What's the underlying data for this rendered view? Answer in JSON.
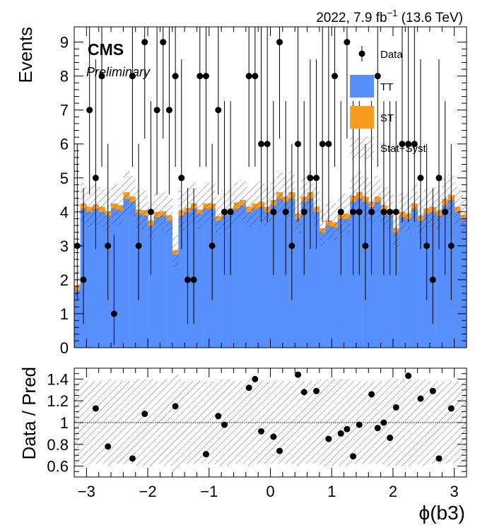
{
  "header": {
    "lumi_label": "2022, 7.9 fb",
    "lumi_sup": "−1",
    "energy_label": " (13.6 TeV)"
  },
  "experiment": {
    "name": "CMS",
    "status": "Preliminary"
  },
  "colors": {
    "TT": "#5790fc",
    "ST": "#f89c20",
    "data": "#000000"
  },
  "chart_data": {
    "type": "bar",
    "stacked": true,
    "xlabel": "ϕ(b3)",
    "ylabel": "Events",
    "xlim": [
      -3.2,
      3.2
    ],
    "ylim": [
      0,
      9.45
    ],
    "x_ticks": [
      "−3",
      "−2",
      "−1",
      "0",
      "1",
      "2",
      "3"
    ],
    "y_ticks": [
      "0",
      "1",
      "2",
      "3",
      "4",
      "5",
      "6",
      "7",
      "8",
      "9"
    ],
    "legend": {
      "position": "top-right",
      "entries": [
        {
          "label": "Data",
          "kind": "marker"
        },
        {
          "label": "TT",
          "kind": "fill",
          "color": "#5790fc"
        },
        {
          "label": "ST",
          "kind": "fill",
          "color": "#f89c20"
        },
        {
          "label": "Stat+Syst",
          "kind": "hatch"
        }
      ]
    },
    "bins": {
      "n": 64,
      "low": -3.2,
      "high": 3.2
    },
    "series": [
      {
        "name": "TT",
        "values": [
          1.7,
          4.1,
          4.0,
          4.1,
          4.0,
          3.9,
          4.1,
          4.05,
          4.4,
          4.3,
          3.95,
          3.9,
          3.6,
          3.85,
          3.9,
          3.75,
          2.75,
          3.9,
          4.0,
          4.1,
          3.95,
          4.1,
          4.1,
          3.75,
          3.9,
          3.95,
          4.1,
          4.2,
          4.0,
          4.1,
          4.15,
          4.0,
          4.2,
          4.4,
          4.3,
          4.4,
          3.8,
          4.3,
          4.4,
          4.0,
          3.4,
          3.6,
          3.55,
          3.8,
          3.8,
          4.3,
          4.4,
          4.3,
          4.15,
          4.3,
          4.05,
          3.9,
          3.4,
          3.85,
          3.8,
          4.1,
          3.75,
          3.95,
          4.0,
          3.9,
          4.2,
          4.35,
          4.0,
          3.8
        ]
      },
      {
        "name": "ST",
        "values": [
          0.15,
          0.15,
          0.15,
          0.12,
          0.15,
          0.12,
          0.15,
          0.15,
          0.18,
          0.15,
          0.12,
          0.15,
          0.15,
          0.15,
          0.12,
          0.15,
          0.12,
          0.15,
          0.12,
          0.15,
          0.12,
          0.15,
          0.15,
          0.12,
          0.15,
          0.15,
          0.18,
          0.15,
          0.15,
          0.15,
          0.15,
          0.15,
          0.15,
          0.18,
          0.15,
          0.18,
          0.15,
          0.15,
          0.18,
          0.15,
          0.12,
          0.15,
          0.15,
          0.15,
          0.15,
          0.18,
          0.18,
          0.15,
          0.15,
          0.15,
          0.15,
          0.15,
          0.12,
          0.15,
          0.15,
          0.15,
          0.15,
          0.15,
          0.15,
          0.15,
          0.18,
          0.15,
          0.15,
          0.12
        ]
      }
    ],
    "data_points": [
      {
        "x": -3.15,
        "y": 3
      },
      {
        "x": -3.05,
        "y": 2
      },
      {
        "x": -2.95,
        "y": 7
      },
      {
        "x": -2.85,
        "y": 5
      },
      {
        "x": -2.75,
        "y": 8
      },
      {
        "x": -2.65,
        "y": 3
      },
      {
        "x": -2.55,
        "y": 1
      },
      {
        "x": -2.25,
        "y": 8
      },
      {
        "x": -2.15,
        "y": 3
      },
      {
        "x": -2.05,
        "y": 9
      },
      {
        "x": -1.95,
        "y": 4
      },
      {
        "x": -1.85,
        "y": 7
      },
      {
        "x": -1.75,
        "y": 9
      },
      {
        "x": -1.65,
        "y": 7
      },
      {
        "x": -1.55,
        "y": 8
      },
      {
        "x": -1.45,
        "y": 5
      },
      {
        "x": -1.35,
        "y": 2
      },
      {
        "x": -1.25,
        "y": 2
      },
      {
        "x": -1.15,
        "y": 8
      },
      {
        "x": -1.05,
        "y": 8
      },
      {
        "x": -0.95,
        "y": 3
      },
      {
        "x": -0.85,
        "y": 7
      },
      {
        "x": -0.75,
        "y": 4
      },
      {
        "x": -0.65,
        "y": 4
      },
      {
        "x": -0.35,
        "y": 8
      },
      {
        "x": -0.25,
        "y": 8
      },
      {
        "x": -0.15,
        "y": 6
      },
      {
        "x": -0.05,
        "y": 6
      },
      {
        "x": 0.05,
        "y": 4
      },
      {
        "x": 0.15,
        "y": 9
      },
      {
        "x": 0.25,
        "y": 4
      },
      {
        "x": 0.35,
        "y": 3
      },
      {
        "x": 0.45,
        "y": 6
      },
      {
        "x": 0.55,
        "y": 4
      },
      {
        "x": 0.65,
        "y": 5
      },
      {
        "x": 0.75,
        "y": 5
      },
      {
        "x": 0.85,
        "y": 6
      },
      {
        "x": 0.95,
        "y": 6
      },
      {
        "x": 1.05,
        "y": 8
      },
      {
        "x": 1.15,
        "y": 4
      },
      {
        "x": 1.25,
        "y": 9
      },
      {
        "x": 1.35,
        "y": 4
      },
      {
        "x": 1.45,
        "y": 4
      },
      {
        "x": 1.55,
        "y": 3
      },
      {
        "x": 1.65,
        "y": 4
      },
      {
        "x": 1.75,
        "y": 8
      },
      {
        "x": 1.85,
        "y": 4
      },
      {
        "x": 1.95,
        "y": 4
      },
      {
        "x": 2.05,
        "y": 4
      },
      {
        "x": 2.15,
        "y": 6
      },
      {
        "x": 2.25,
        "y": 6
      },
      {
        "x": 2.35,
        "y": 6
      },
      {
        "x": 2.45,
        "y": 5
      },
      {
        "x": 2.55,
        "y": 3
      },
      {
        "x": 2.65,
        "y": 2
      },
      {
        "x": 2.75,
        "y": 5
      },
      {
        "x": 2.85,
        "y": 4
      },
      {
        "x": 2.95,
        "y": 3
      }
    ],
    "ratio": {
      "ylabel": "Data / Pred",
      "ylim": [
        0.5,
        1.5
      ],
      "y_ticks": [
        "0.6",
        "0.8",
        "1",
        "1.2",
        "1.4"
      ],
      "unc_band": [
        0.38,
        0.38,
        0.38,
        0.38,
        0.38,
        0.4,
        0.38,
        0.38,
        0.38,
        0.38,
        0.4,
        0.4,
        0.4,
        0.38,
        0.4,
        0.4,
        0.45,
        0.4,
        0.38,
        0.38,
        0.38,
        0.38,
        0.38,
        0.4,
        0.4,
        0.4,
        0.38,
        0.38,
        0.4,
        0.38,
        0.38,
        0.38,
        0.38,
        0.38,
        0.38,
        0.38,
        0.4,
        0.38,
        0.38,
        0.38,
        0.4,
        0.4,
        0.4,
        0.4,
        0.4,
        0.38,
        0.38,
        0.38,
        0.38,
        0.38,
        0.38,
        0.4,
        0.4,
        0.4,
        0.4,
        0.38,
        0.4,
        0.4,
        0.38,
        0.38,
        0.38,
        0.38,
        0.38,
        0.4
      ],
      "points": [
        {
          "x": -2.85,
          "y": 1.13
        },
        {
          "x": -2.65,
          "y": 0.78
        },
        {
          "x": -2.25,
          "y": 0.67
        },
        {
          "x": -2.05,
          "y": 1.08
        },
        {
          "x": -1.55,
          "y": 1.15
        },
        {
          "x": -1.05,
          "y": 0.71
        },
        {
          "x": -0.85,
          "y": 1.06
        },
        {
          "x": -0.75,
          "y": 0.98
        },
        {
          "x": -0.35,
          "y": 1.32
        },
        {
          "x": -0.25,
          "y": 1.4
        },
        {
          "x": -0.15,
          "y": 0.92
        },
        {
          "x": 0.05,
          "y": 0.87
        },
        {
          "x": 0.15,
          "y": 0.74
        },
        {
          "x": 0.45,
          "y": 1.44
        },
        {
          "x": 0.55,
          "y": 1.28
        },
        {
          "x": 0.75,
          "y": 1.29
        },
        {
          "x": 0.95,
          "y": 0.85
        },
        {
          "x": 1.15,
          "y": 0.9
        },
        {
          "x": 1.25,
          "y": 0.94
        },
        {
          "x": 1.35,
          "y": 0.69
        },
        {
          "x": 1.45,
          "y": 0.98
        },
        {
          "x": 1.65,
          "y": 1.26
        },
        {
          "x": 1.75,
          "y": 0.95
        },
        {
          "x": 1.85,
          "y": 1.0
        },
        {
          "x": 1.95,
          "y": 0.86
        },
        {
          "x": 2.05,
          "y": 1.14
        },
        {
          "x": 2.25,
          "y": 1.43
        },
        {
          "x": 2.45,
          "y": 1.22
        },
        {
          "x": 2.65,
          "y": 1.29
        },
        {
          "x": 2.75,
          "y": 0.67
        },
        {
          "x": 2.95,
          "y": 1.13
        }
      ]
    }
  }
}
